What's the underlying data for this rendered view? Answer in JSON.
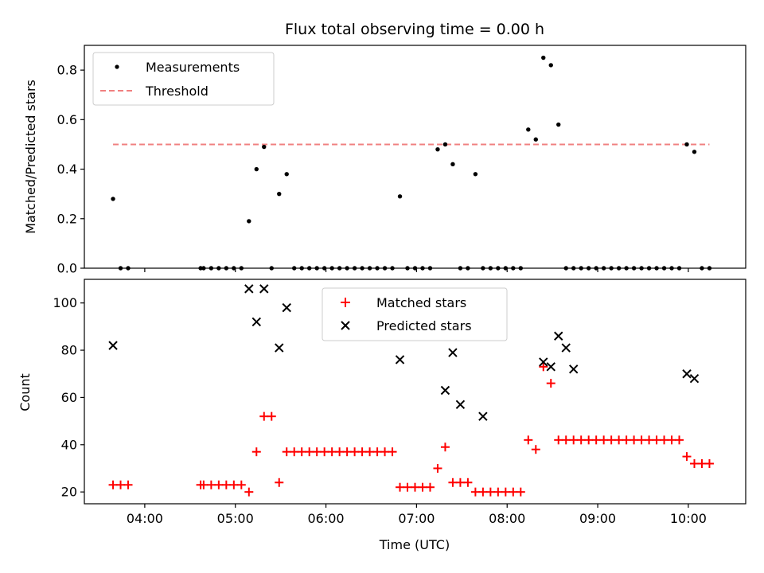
{
  "chart_data": [
    {
      "type": "scatter",
      "title": "Flux total observing time = 0.00 h",
      "xlabel": "",
      "ylabel": "Matched/Predicted stars",
      "xlim": [
        "03:20",
        "10:38"
      ],
      "ylim": [
        0,
        0.9
      ],
      "yticks": [
        "0.0",
        "0.2",
        "0.4",
        "0.6",
        "0.8"
      ],
      "ytick_values": [
        0,
        0.2,
        0.4,
        0.6,
        0.8
      ],
      "grid": false,
      "legend": "top-left",
      "series": [
        {
          "name": "Measurements",
          "marker": "dot",
          "color": "#000000",
          "x": [
            "03:39",
            "03:44",
            "03:49",
            "04:37",
            "04:39",
            "04:44",
            "04:49",
            "04:54",
            "04:59",
            "05:04",
            "05:09",
            "05:14",
            "05:19",
            "05:24",
            "05:29",
            "05:34",
            "05:39",
            "05:44",
            "05:49",
            "05:54",
            "05:59",
            "06:04",
            "06:09",
            "06:14",
            "06:19",
            "06:24",
            "06:29",
            "06:34",
            "06:39",
            "06:44",
            "06:49",
            "06:54",
            "06:59",
            "07:04",
            "07:09",
            "07:14",
            "07:19",
            "07:24",
            "07:29",
            "07:34",
            "07:39",
            "07:44",
            "07:49",
            "07:54",
            "07:59",
            "08:04",
            "08:09",
            "08:14",
            "08:19",
            "08:24",
            "08:29",
            "08:34",
            "08:39",
            "08:44",
            "08:49",
            "08:54",
            "08:59",
            "09:04",
            "09:09",
            "09:14",
            "09:19",
            "09:24",
            "09:29",
            "09:34",
            "09:39",
            "09:44",
            "09:49",
            "09:54",
            "09:59",
            "10:04",
            "10:09",
            "10:14"
          ],
          "y": [
            0.28,
            0,
            0,
            0,
            0,
            0,
            0,
            0,
            0,
            0,
            0.19,
            0.4,
            0.49,
            0,
            0.3,
            0.38,
            0,
            0,
            0,
            0,
            0,
            0,
            0,
            0,
            0,
            0,
            0,
            0,
            0,
            0,
            0.29,
            0,
            0,
            0,
            0,
            0.48,
            0.5,
            0.42,
            0,
            0,
            0.38,
            0,
            0,
            0,
            0,
            0,
            0,
            0.56,
            0.52,
            0.85,
            0.82,
            0.58,
            0,
            0,
            0,
            0,
            0,
            0,
            0,
            0,
            0,
            0,
            0,
            0,
            0,
            0,
            0,
            0,
            0.5,
            0.47,
            0,
            0
          ]
        },
        {
          "name": "Threshold",
          "marker": "dashed-line",
          "color": "#f08080",
          "x": [
            "03:39",
            "10:14"
          ],
          "y": [
            0.5,
            0.5
          ]
        }
      ]
    },
    {
      "type": "scatter",
      "title": "",
      "xlabel": "Time (UTC)",
      "ylabel": "Count",
      "xlim": [
        "03:20",
        "10:38"
      ],
      "ylim": [
        15,
        110
      ],
      "yticks": [
        "20",
        "40",
        "60",
        "80",
        "100"
      ],
      "ytick_values": [
        20,
        40,
        60,
        80,
        100
      ],
      "xticks": [
        "04:00",
        "05:00",
        "06:00",
        "07:00",
        "08:00",
        "09:00",
        "10:00"
      ],
      "grid": false,
      "legend": "top-center",
      "series": [
        {
          "name": "Matched stars",
          "marker": "plus",
          "color": "#ff0000",
          "x": [
            "03:39",
            "03:44",
            "03:49",
            "04:37",
            "04:39",
            "04:44",
            "04:49",
            "04:54",
            "04:59",
            "05:04",
            "05:09",
            "05:14",
            "05:19",
            "05:24",
            "05:29",
            "05:34",
            "05:39",
            "05:44",
            "05:49",
            "05:54",
            "05:59",
            "06:04",
            "06:09",
            "06:14",
            "06:19",
            "06:24",
            "06:29",
            "06:34",
            "06:39",
            "06:44",
            "06:49",
            "06:54",
            "06:59",
            "07:04",
            "07:09",
            "07:14",
            "07:19",
            "07:24",
            "07:29",
            "07:34",
            "07:39",
            "07:44",
            "07:49",
            "07:54",
            "07:59",
            "08:04",
            "08:09",
            "08:14",
            "08:19",
            "08:24",
            "08:29",
            "08:34",
            "08:39",
            "08:44",
            "08:49",
            "08:54",
            "08:59",
            "09:04",
            "09:09",
            "09:14",
            "09:19",
            "09:24",
            "09:29",
            "09:34",
            "09:39",
            "09:44",
            "09:49",
            "09:54",
            "09:59",
            "10:04",
            "10:09",
            "10:14"
          ],
          "y": [
            23,
            23,
            23,
            23,
            23,
            23,
            23,
            23,
            23,
            23,
            20,
            37,
            52,
            52,
            24,
            37,
            37,
            37,
            37,
            37,
            37,
            37,
            37,
            37,
            37,
            37,
            37,
            37,
            37,
            37,
            22,
            22,
            22,
            22,
            22,
            30,
            39,
            24,
            24,
            24,
            20,
            20,
            20,
            20,
            20,
            20,
            20,
            42,
            38,
            73,
            66,
            42,
            42,
            42,
            42,
            42,
            42,
            42,
            42,
            42,
            42,
            42,
            42,
            42,
            42,
            42,
            42,
            42,
            35,
            32,
            32,
            32
          ]
        },
        {
          "name": "Predicted stars",
          "marker": "x",
          "color": "#000000",
          "x": [
            "03:39",
            "05:09",
            "05:14",
            "05:19",
            "05:29",
            "05:34",
            "06:49",
            "07:19",
            "07:24",
            "07:29",
            "07:44",
            "08:24",
            "08:29",
            "08:34",
            "08:39",
            "08:44",
            "09:59",
            "10:04"
          ],
          "y": [
            82,
            106,
            92,
            106,
            81,
            98,
            76,
            63,
            79,
            57,
            52,
            75,
            73,
            86,
            81,
            72,
            70,
            68
          ]
        }
      ]
    }
  ]
}
